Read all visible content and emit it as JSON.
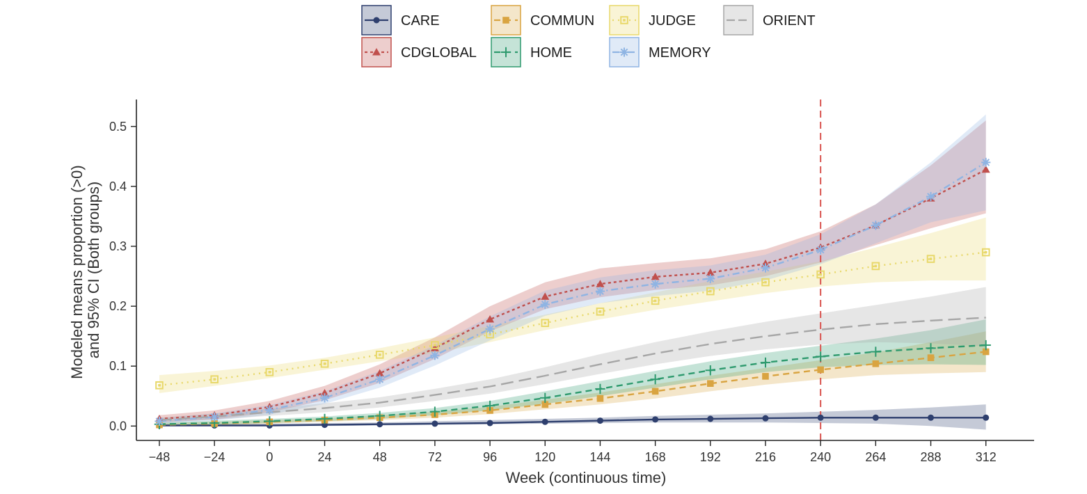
{
  "chart_data": {
    "type": "line",
    "title": "",
    "xlabel": "Week (continuous time)",
    "ylabel_lines": [
      "Modeled means proportion (>0)",
      "and 95% CI (Both groups)"
    ],
    "x": [
      -48,
      -24,
      0,
      24,
      48,
      72,
      96,
      120,
      144,
      168,
      192,
      216,
      240,
      264,
      288,
      312
    ],
    "xlim": [
      -58,
      333
    ],
    "ylim": [
      -0.024,
      0.545
    ],
    "y_ticks": [
      0.0,
      0.1,
      0.2,
      0.3,
      0.4,
      0.5
    ],
    "y_tick_labels": [
      "0.0",
      "0.1",
      "0.2",
      "0.3",
      "0.4",
      "0.5"
    ],
    "reference_line_x": 240,
    "reference_line_color": "#d9534f",
    "grid": false,
    "legend_position": "top",
    "series": [
      {
        "name": "CARE",
        "color": "#2e3f6e",
        "marker": "circle",
        "dash": "solid",
        "values": [
          0.001,
          0.001,
          0.001,
          0.002,
          0.003,
          0.004,
          0.005,
          0.007,
          0.009,
          0.011,
          0.012,
          0.013,
          0.014,
          0.014,
          0.014,
          0.014
        ],
        "ci_lower": [
          0.0,
          0.0,
          0.0,
          0.0,
          0.001,
          0.002,
          0.003,
          0.004,
          0.005,
          0.006,
          0.006,
          0.006,
          0.005,
          0.004,
          0.0,
          -0.006
        ],
        "ci_upper": [
          0.003,
          0.003,
          0.004,
          0.005,
          0.006,
          0.008,
          0.01,
          0.012,
          0.014,
          0.017,
          0.019,
          0.021,
          0.024,
          0.027,
          0.031,
          0.036
        ]
      },
      {
        "name": "CDGLOBAL",
        "color": "#c0504d",
        "marker": "triangle",
        "dash": "short",
        "values": [
          0.012,
          0.018,
          0.032,
          0.055,
          0.088,
          0.13,
          0.178,
          0.216,
          0.237,
          0.249,
          0.256,
          0.271,
          0.298,
          0.335,
          0.38,
          0.428
        ],
        "ci_lower": [
          0.006,
          0.011,
          0.023,
          0.043,
          0.072,
          0.112,
          0.158,
          0.195,
          0.215,
          0.227,
          0.235,
          0.25,
          0.273,
          0.302,
          0.33,
          0.355
        ],
        "ci_upper": [
          0.018,
          0.026,
          0.042,
          0.067,
          0.103,
          0.148,
          0.2,
          0.24,
          0.263,
          0.272,
          0.28,
          0.295,
          0.325,
          0.37,
          0.435,
          0.51
        ]
      },
      {
        "name": "COMMUN",
        "color": "#d9a441",
        "marker": "square",
        "dash": "dash",
        "values": [
          0.002,
          0.004,
          0.007,
          0.01,
          0.014,
          0.019,
          0.026,
          0.036,
          0.046,
          0.058,
          0.071,
          0.083,
          0.094,
          0.104,
          0.114,
          0.124
        ],
        "ci_lower": [
          0.0,
          0.001,
          0.004,
          0.007,
          0.01,
          0.014,
          0.02,
          0.028,
          0.036,
          0.046,
          0.058,
          0.069,
          0.078,
          0.085,
          0.088,
          0.09
        ],
        "ci_upper": [
          0.005,
          0.007,
          0.01,
          0.013,
          0.018,
          0.024,
          0.032,
          0.044,
          0.056,
          0.07,
          0.084,
          0.097,
          0.11,
          0.123,
          0.14,
          0.158
        ]
      },
      {
        "name": "HOME",
        "color": "#2e9a6e",
        "marker": "plus",
        "dash": "dash",
        "values": [
          0.003,
          0.005,
          0.008,
          0.012,
          0.017,
          0.024,
          0.034,
          0.047,
          0.062,
          0.078,
          0.093,
          0.106,
          0.116,
          0.124,
          0.13,
          0.135
        ],
        "ci_lower": [
          0.001,
          0.002,
          0.005,
          0.008,
          0.012,
          0.018,
          0.026,
          0.037,
          0.05,
          0.064,
          0.078,
          0.09,
          0.098,
          0.102,
          0.103,
          0.102
        ],
        "ci_upper": [
          0.006,
          0.009,
          0.012,
          0.016,
          0.022,
          0.03,
          0.042,
          0.058,
          0.075,
          0.092,
          0.108,
          0.122,
          0.134,
          0.146,
          0.16,
          0.178
        ]
      },
      {
        "name": "JUDGE",
        "color": "#e8d86a",
        "marker": "square-open",
        "dash": "dot",
        "values": [
          0.068,
          0.078,
          0.09,
          0.104,
          0.119,
          0.135,
          0.153,
          0.172,
          0.191,
          0.209,
          0.225,
          0.24,
          0.253,
          0.267,
          0.279,
          0.29
        ],
        "ci_lower": [
          0.055,
          0.067,
          0.08,
          0.094,
          0.108,
          0.122,
          0.14,
          0.16,
          0.178,
          0.194,
          0.208,
          0.222,
          0.233,
          0.24,
          0.243,
          0.243
        ],
        "ci_upper": [
          0.085,
          0.092,
          0.101,
          0.114,
          0.13,
          0.148,
          0.167,
          0.186,
          0.205,
          0.223,
          0.242,
          0.258,
          0.275,
          0.298,
          0.322,
          0.348
        ]
      },
      {
        "name": "MEMORY",
        "color": "#8fb4e3",
        "marker": "asterisk",
        "dash": "dashdot",
        "values": [
          0.008,
          0.015,
          0.027,
          0.047,
          0.078,
          0.118,
          0.162,
          0.203,
          0.225,
          0.237,
          0.246,
          0.264,
          0.294,
          0.335,
          0.383,
          0.44
        ],
        "ci_lower": [
          0.004,
          0.009,
          0.019,
          0.037,
          0.064,
          0.101,
          0.143,
          0.184,
          0.205,
          0.217,
          0.226,
          0.243,
          0.27,
          0.305,
          0.34,
          0.36
        ],
        "ci_upper": [
          0.013,
          0.021,
          0.035,
          0.058,
          0.092,
          0.135,
          0.183,
          0.226,
          0.248,
          0.26,
          0.268,
          0.286,
          0.32,
          0.37,
          0.44,
          0.52
        ]
      },
      {
        "name": "ORIENT",
        "color": "#a6a6a6",
        "marker": "none",
        "dash": "longdash",
        "values": [
          0.01,
          0.016,
          0.023,
          0.03,
          0.039,
          0.052,
          0.066,
          0.084,
          0.103,
          0.121,
          0.137,
          0.15,
          0.161,
          0.17,
          0.176,
          0.181
        ],
        "ci_lower": [
          0.006,
          0.011,
          0.017,
          0.023,
          0.031,
          0.042,
          0.054,
          0.07,
          0.087,
          0.103,
          0.117,
          0.128,
          0.136,
          0.14,
          0.138,
          0.133
        ],
        "ci_upper": [
          0.014,
          0.021,
          0.029,
          0.038,
          0.048,
          0.062,
          0.078,
          0.098,
          0.12,
          0.14,
          0.158,
          0.174,
          0.188,
          0.202,
          0.216,
          0.232
        ]
      }
    ],
    "legend_order": [
      "CARE",
      "COMMUN",
      "JUDGE",
      "ORIENT",
      "CDGLOBAL",
      "HOME",
      "MEMORY"
    ]
  }
}
